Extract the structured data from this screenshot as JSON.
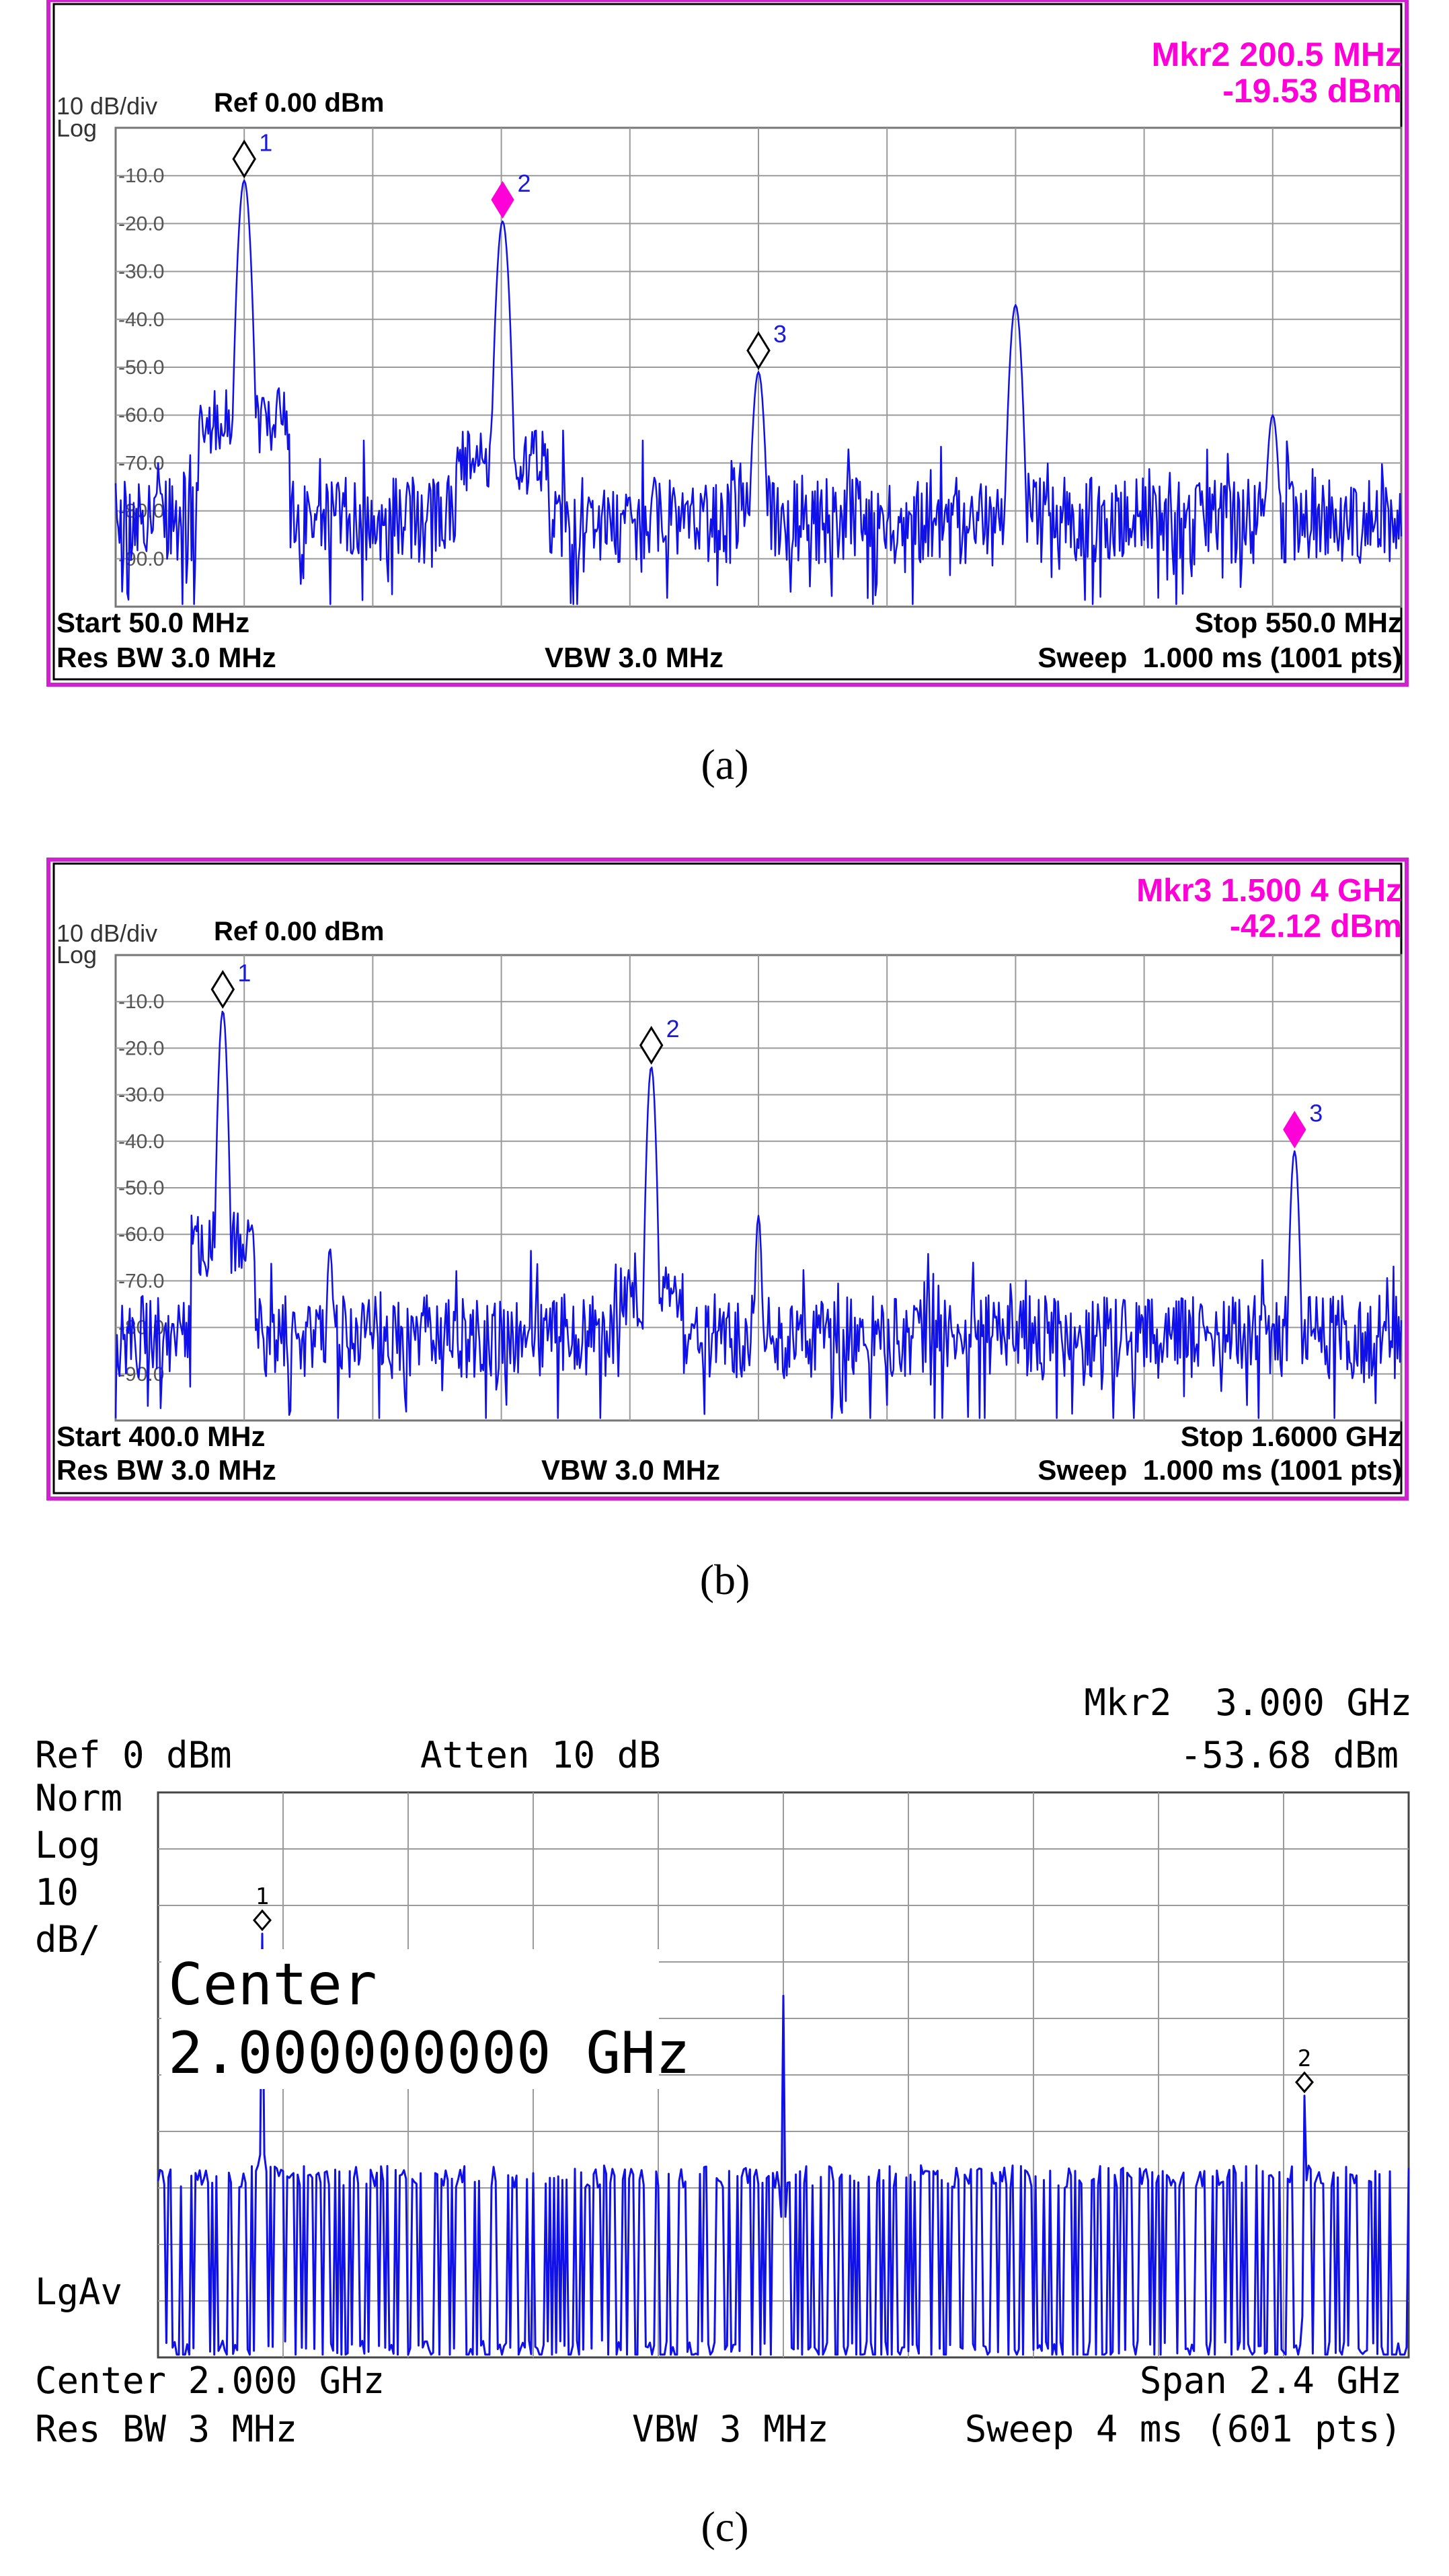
{
  "colors": {
    "trace": "#1010e8",
    "marker_active": "#ff00d8",
    "frame_ab": "#d020d0",
    "marker_text": "#1a1ad8",
    "grid": "#9a9a9a"
  },
  "captions": [
    "(a)",
    "(b)",
    "(c)"
  ],
  "panel_a": {
    "scale_label": "10 dB/div",
    "log_label": "Log",
    "ref_label": "Ref 0.00 dBm",
    "marker_readout_freq": "Mkr2 200.5 MHz",
    "marker_readout_level": "-19.53 dBm",
    "start_label": "Start 50.0 MHz",
    "stop_label": "Stop 550.0 MHz",
    "res_bw_label": "Res BW 3.0 MHz",
    "vbw_label": "VBW 3.0 MHz",
    "sweep_label": "Sweep  1.000 ms (1001 pts)"
  },
  "panel_b": {
    "scale_label": "10 dB/div",
    "log_label": "Log",
    "ref_label": "Ref 0.00 dBm",
    "marker_readout_freq": "Mkr3 1.500 4 GHz",
    "marker_readout_level": "-42.12 dBm",
    "start_label": "Start 400.0 MHz",
    "stop_label": "Stop 1.6000 GHz",
    "res_bw_label": "Res BW 3.0 MHz",
    "vbw_label": "VBW 3.0 MHz",
    "sweep_label": "Sweep  1.000 ms (1001 pts)"
  },
  "panel_c": {
    "ref_label": "Ref 0 dBm",
    "atten_label": "Atten 10 dB",
    "marker_readout_freq": "Mkr2  3.000 GHz",
    "marker_readout_level": "-53.68 dBm",
    "side_labels": [
      "Norm",
      "Log",
      "10",
      "dB/"
    ],
    "lgav_label": "LgAv",
    "center_overlay_line1": "Center",
    "center_overlay_line2": "2.000000000 GHz",
    "center_label": "Center 2.000 GHz",
    "span_label": "Span 2.4 GHz",
    "res_bw_label": "Res BW 3 MHz",
    "vbw_label": "VBW 3 MHz",
    "sweep_label": "Sweep 4 ms (601 pts)"
  },
  "chart_data": [
    {
      "type": "line",
      "panel": "a",
      "x_unit": "MHz",
      "y_unit": "dBm",
      "xlim": [
        50,
        550
      ],
      "ylim": [
        -100,
        0
      ],
      "y_ticks": [
        "-10.0",
        "-20.0",
        "-30.0",
        "-40.0",
        "-50.0",
        "-60.0",
        "-70.0",
        "-80.0",
        "-90.0"
      ],
      "grid": true,
      "noise_floor_dbm": -82,
      "peaks": [
        {
          "freq": 100,
          "level": -11,
          "width": 3
        },
        {
          "freq": 200.5,
          "level": -19.53,
          "width": 3
        },
        {
          "freq": 300,
          "level": -51,
          "width": 3
        },
        {
          "freq": 400,
          "level": -37,
          "width": 3
        },
        {
          "freq": 500,
          "level": -60,
          "width": 3
        }
      ],
      "markers": [
        {
          "label": "1",
          "freq": 100,
          "level": -11,
          "active": false
        },
        {
          "label": "2",
          "freq": 200.5,
          "level": -19.53,
          "active": true
        },
        {
          "label": "3",
          "freq": 300,
          "level": -51,
          "active": false
        }
      ]
    },
    {
      "type": "line",
      "panel": "b",
      "x_unit": "MHz",
      "y_unit": "dBm",
      "xlim": [
        400,
        1600
      ],
      "ylim": [
        -100,
        0
      ],
      "y_ticks": [
        "-10.0",
        "-20.0",
        "-30.0",
        "-40.0",
        "-50.0",
        "-60.0",
        "-70.0",
        "-80.0",
        "-90.0"
      ],
      "grid": true,
      "noise_floor_dbm": -82,
      "peaks": [
        {
          "freq": 500,
          "level": -12,
          "width": 5
        },
        {
          "freq": 600,
          "level": -63,
          "width": 4
        },
        {
          "freq": 900,
          "level": -24,
          "width": 5
        },
        {
          "freq": 1000,
          "level": -56,
          "width": 4
        },
        {
          "freq": 1500.4,
          "level": -42.12,
          "width": 5
        }
      ],
      "markers": [
        {
          "label": "1",
          "freq": 500,
          "level": -12,
          "active": false
        },
        {
          "label": "2",
          "freq": 900,
          "level": -24,
          "active": false
        },
        {
          "label": "3",
          "freq": 1500.4,
          "level": -42.12,
          "active": true
        }
      ]
    },
    {
      "type": "line",
      "panel": "c",
      "x_unit": "GHz",
      "y_unit": "dBm",
      "xlim": [
        0.8,
        3.2
      ],
      "ylim": [
        -100,
        0
      ],
      "grid": true,
      "noise_floor_dbm": -85,
      "peaks": [
        {
          "freq": 1.0,
          "level": -25,
          "width": 0.003
        },
        {
          "freq": 2.0,
          "level": -36,
          "width": 0.003
        },
        {
          "freq": 3.0,
          "level": -53.68,
          "width": 0.003
        }
      ],
      "markers": [
        {
          "label": "1",
          "freq": 1.0,
          "level": -25,
          "active": false
        },
        {
          "label": "2",
          "freq": 3.0,
          "level": -53.68,
          "active": false
        }
      ]
    }
  ]
}
